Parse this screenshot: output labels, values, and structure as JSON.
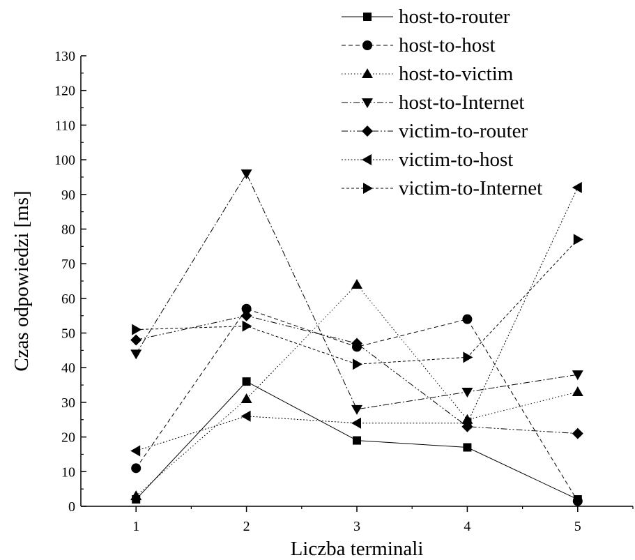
{
  "chart_data": {
    "type": "line",
    "title": "",
    "xlabel": "Liczba terminali",
    "ylabel": "Czas odpowiedzi [ms]",
    "x": [
      1,
      2,
      3,
      4,
      5
    ],
    "xlim": [
      0.5,
      5.5
    ],
    "ylim": [
      0,
      130
    ],
    "xticks": [
      1,
      2,
      3,
      4,
      5
    ],
    "yticks": [
      0,
      10,
      20,
      30,
      40,
      50,
      60,
      70,
      80,
      90,
      100,
      110,
      120,
      130
    ],
    "grid": false,
    "legend_position": "top-right",
    "series": [
      {
        "name": "host-to-router",
        "marker": "square",
        "line": "solid",
        "values": [
          2,
          36,
          19,
          17,
          2
        ]
      },
      {
        "name": "host-to-host",
        "marker": "circle",
        "line": "dashed",
        "values": [
          11,
          57,
          46,
          54,
          1.5
        ]
      },
      {
        "name": "host-to-victim",
        "marker": "triangle-up",
        "line": "dotted",
        "values": [
          3,
          31,
          64,
          25,
          33
        ]
      },
      {
        "name": "host-to-Internet",
        "marker": "triangle-down",
        "line": "dashdot",
        "values": [
          44,
          96,
          28,
          33,
          38
        ]
      },
      {
        "name": "victim-to-router",
        "marker": "diamond",
        "line": "dashdotdot",
        "values": [
          48,
          55,
          47,
          23,
          21
        ]
      },
      {
        "name": "victim-to-host",
        "marker": "triangle-left",
        "line": "shortdot",
        "values": [
          16,
          26,
          24,
          24,
          92
        ]
      },
      {
        "name": "victim-to-Internet",
        "marker": "triangle-right",
        "line": "shortdash",
        "values": [
          51,
          52,
          41,
          43,
          77
        ]
      }
    ]
  }
}
